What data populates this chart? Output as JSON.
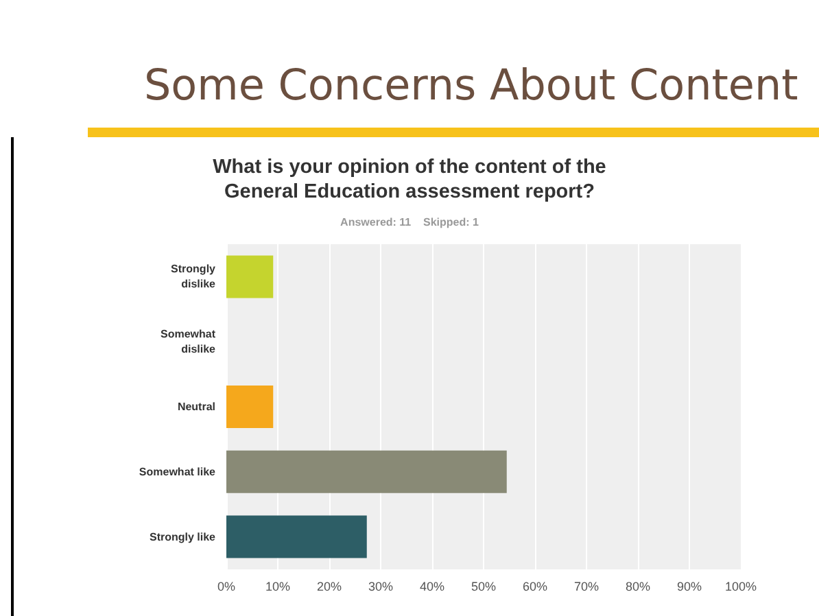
{
  "chart_data": {
    "type": "bar",
    "orientation": "horizontal",
    "title": "Some Concerns About Content",
    "subtitle": "What is your opinion of the content of the\nGeneral Education assessment report?",
    "annotations": [
      "Answered: 11    Skipped: 1"
    ],
    "categories": [
      "Strongly\ndislike",
      "Somewhat\ndislike",
      "Neutral",
      "Somewhat like",
      "Strongly like"
    ],
    "values": [
      9.1,
      0,
      9.1,
      54.5,
      27.3
    ],
    "colors": [
      "#c5d42e",
      "#8fb3c9",
      "#f5a81c",
      "#898a76",
      "#2d5e66"
    ],
    "xlim": [
      0,
      100
    ],
    "xticks": [
      {
        "value": 0,
        "label": "0%"
      },
      {
        "value": 10,
        "label": "10%"
      },
      {
        "value": 20,
        "label": "20%"
      },
      {
        "value": 30,
        "label": "30%"
      },
      {
        "value": 40,
        "label": "40%"
      },
      {
        "value": 50,
        "label": "50%"
      },
      {
        "value": 60,
        "label": "60%"
      },
      {
        "value": 70,
        "label": "70%"
      },
      {
        "value": 80,
        "label": "80%"
      },
      {
        "value": 90,
        "label": "90%"
      },
      {
        "value": 100,
        "label": "100%"
      }
    ],
    "grid": "x"
  }
}
